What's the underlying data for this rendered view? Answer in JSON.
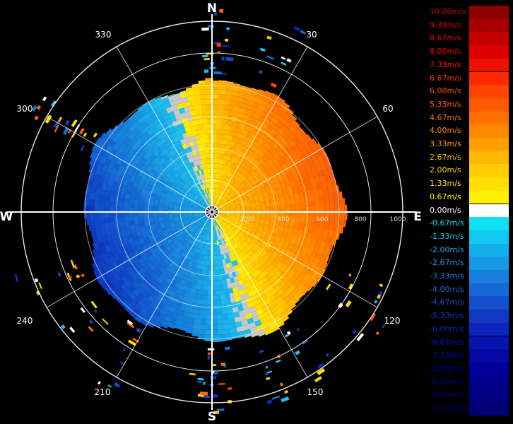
{
  "plot": {
    "cardinals": {
      "north": "N",
      "east": "E",
      "south": "S",
      "west": "W"
    },
    "azimuth_labels": [
      "30",
      "60",
      "120",
      "150",
      "210",
      "240",
      "300",
      "330"
    ],
    "range_labels": [
      "200",
      "400",
      "600",
      "800",
      "1000"
    ],
    "ring_count": 6,
    "spoke_interval_deg": 30,
    "max_range": 1200,
    "colors": {
      "background": "#000000",
      "rings": "#ffffff",
      "north_axis": "#e8d8ff",
      "speckle_gray": "#c8c8c8"
    }
  },
  "legend": {
    "entries": [
      {
        "label": "10.00m/s",
        "swatch": "#8c0000",
        "text_color": "#c40000"
      },
      {
        "label": "9.33m/s",
        "swatch": "#a80000",
        "text_color": "#d80000"
      },
      {
        "label": "8.67m/s",
        "swatch": "#c40000",
        "text_color": "#e80000"
      },
      {
        "label": "8.00m/s",
        "swatch": "#dc0000",
        "text_color": "#f00000"
      },
      {
        "label": "7.33m/s",
        "swatch": "#f01000",
        "text_color": "#ff1400"
      },
      {
        "label": "6.67m/s",
        "swatch": "#ff2800",
        "text_color": "#ff3000"
      },
      {
        "label": "6.00m/s",
        "swatch": "#ff4400",
        "text_color": "#ff4a00"
      },
      {
        "label": "5.33m/s",
        "swatch": "#ff5a00",
        "text_color": "#ff6000"
      },
      {
        "label": "4.67m/s",
        "swatch": "#ff7000",
        "text_color": "#ff7400"
      },
      {
        "label": "4.00m/s",
        "swatch": "#ff8800",
        "text_color": "#ff8c00"
      },
      {
        "label": "3.33m/s",
        "swatch": "#ffa000",
        "text_color": "#ffa400"
      },
      {
        "label": "2.67m/s",
        "swatch": "#ffb800",
        "text_color": "#ffbc00"
      },
      {
        "label": "2.00m/s",
        "swatch": "#ffcc00",
        "text_color": "#ffd000"
      },
      {
        "label": "1.33m/s",
        "swatch": "#ffe000",
        "text_color": "#ffe400"
      },
      {
        "label": "0.67m/s",
        "swatch": "#fff200",
        "text_color": "#fff400"
      },
      {
        "label": "0.00m/s",
        "swatch": "#ffffff",
        "text_color": "#ffffff"
      },
      {
        "label": "-0.67m/s",
        "swatch": "#10e0f4",
        "text_color": "#10e0f4"
      },
      {
        "label": "-1.33m/s",
        "swatch": "#12c8f0",
        "text_color": "#12c8f0"
      },
      {
        "label": "-2.00m/s",
        "swatch": "#14b0ec",
        "text_color": "#14b0ec"
      },
      {
        "label": "-2.67m/s",
        "swatch": "#1698e4",
        "text_color": "#1698e4"
      },
      {
        "label": "-3.33m/s",
        "swatch": "#1880dc",
        "text_color": "#1880dc"
      },
      {
        "label": "-4.00m/s",
        "swatch": "#1668d4",
        "text_color": "#1668d4"
      },
      {
        "label": "-4.67m/s",
        "swatch": "#1450cc",
        "text_color": "#1450cc"
      },
      {
        "label": "-5.33m/s",
        "swatch": "#1038c4",
        "text_color": "#1038c4"
      },
      {
        "label": "-6.00m/s",
        "swatch": "#0c24bc",
        "text_color": "#0c24bc"
      },
      {
        "label": "-6.67m/s",
        "swatch": "#0814b0",
        "text_color": "#0814b0"
      },
      {
        "label": "-7.33m/s",
        "swatch": "#0408a4",
        "text_color": "#0408a4"
      },
      {
        "label": "-8.00m/s",
        "swatch": "#000098",
        "text_color": "#00009c"
      },
      {
        "label": "-8.67m/s",
        "swatch": "#00008c",
        "text_color": "#000090"
      },
      {
        "label": "-9.33m/s",
        "swatch": "#000080",
        "text_color": "#000084"
      },
      {
        "label": "-10.00m/s",
        "swatch": "#000074",
        "text_color": "#000078"
      }
    ]
  }
}
